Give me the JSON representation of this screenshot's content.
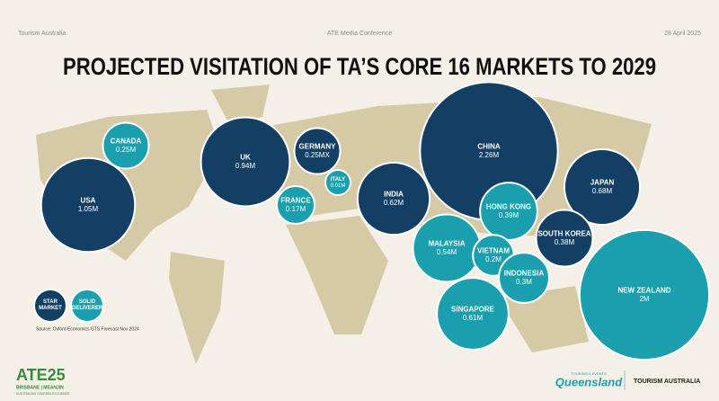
{
  "header": {
    "left": "Tourism Australia",
    "center": "ATE Media Conference",
    "right": "28 April 2025"
  },
  "chart_data": {
    "type": "bubble",
    "title": "PROJECTED VISITATION OF TA’S CORE 16 MARKETS TO 2029",
    "source": "Source: Oxford Economics GTS Forecast Nov 2024",
    "series": [
      {
        "name": "STAR MARKET",
        "color": "#123f63",
        "categories": [
          "USA",
          "UK",
          "GERMANY",
          "INDIA",
          "CHINA",
          "JAPAN",
          "SOUTH KOREA"
        ],
        "values": [
          1.05,
          0.94,
          0.25,
          0.62,
          2.26,
          0.68,
          0.38
        ],
        "value_labels": [
          "1.05M",
          "0.94M",
          "0.25MX",
          "0.62M",
          "2.26M",
          "0.68M",
          "0.38M"
        ]
      },
      {
        "name": "SOLID DELIVERER",
        "color": "#1a9fae",
        "categories": [
          "CANADA",
          "FRANCE",
          "ITALY",
          "HONG KONG",
          "MALAYSIA",
          "VIETNAM",
          "INDONESIA",
          "SINGAPORE",
          "NEW ZEALAND"
        ],
        "values": [
          0.25,
          0.17,
          0.01,
          0.39,
          0.54,
          0.2,
          0.3,
          0.61,
          2
        ],
        "value_labels": [
          "0.25M",
          "0.17M",
          "0.01M",
          "0.39M",
          "0.54M",
          "0.2M",
          "0.3M",
          "0.61M",
          "2M"
        ]
      }
    ]
  },
  "footer": {
    "event": "ATE25",
    "event_city": "BRISBANE | MEANJIN",
    "event_name": "AUSTRALIAN TOURISM EXCHANGE",
    "partner_top": "TOURISM & EVENTS",
    "partner": "Queensland",
    "brand": "TOURISM AUSTRALIA"
  }
}
